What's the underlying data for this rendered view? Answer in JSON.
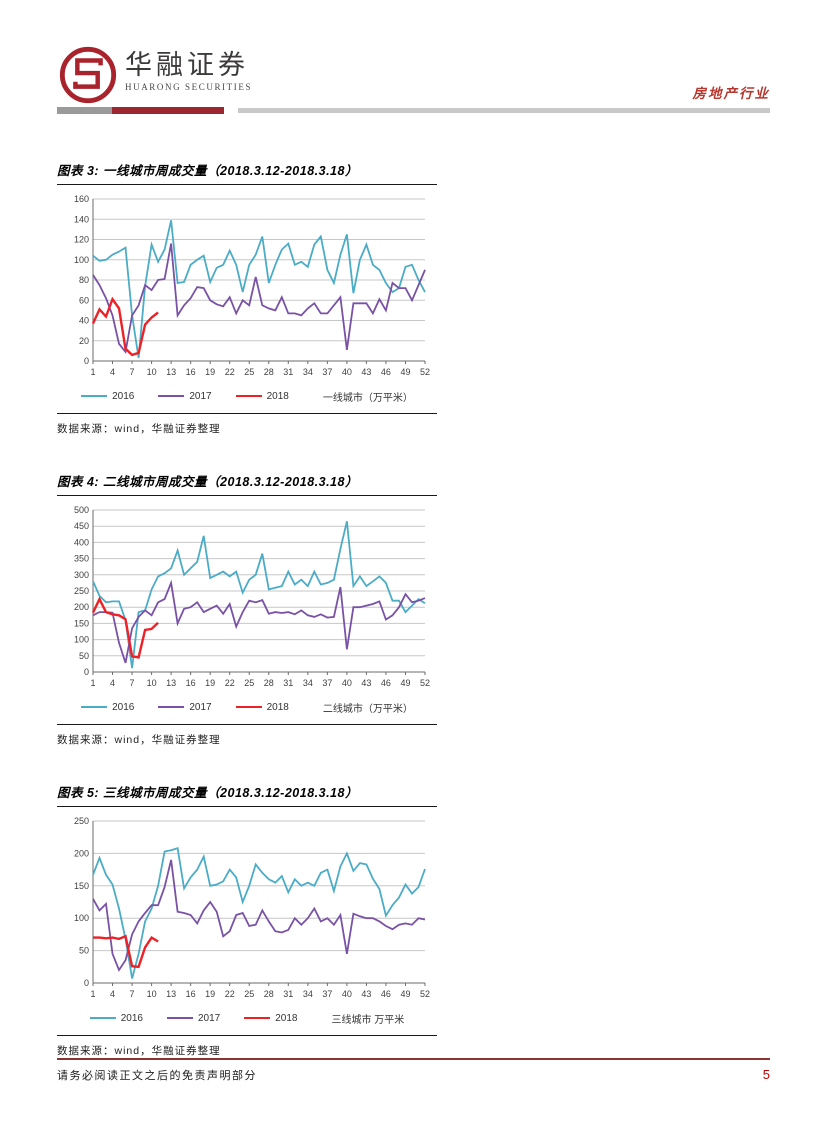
{
  "header": {
    "brand_cn": "华融证券",
    "brand_en": "HUARONG SECURITIES",
    "industry_label": "房地产行业"
  },
  "source_label": "数据来源：wind，华融证券整理",
  "footer": {
    "disclaimer": "请务必阅读正文之后的免责声明部分",
    "page_number": "5"
  },
  "colors": {
    "series_2016": "#4BACC6",
    "series_2017": "#7952A5",
    "series_2018": "#EC2227",
    "accent_red": "#9c2730",
    "footer_line": "#8c3434"
  },
  "chart_data": [
    {
      "type": "line",
      "title": "图表 3: 一线城市周成交量（2018.3.12-2018.3.18）",
      "unit_label": "一线城市（万平米）",
      "xlabel": "",
      "ylabel": "",
      "x_range": [
        1,
        52
      ],
      "x_ticks": [
        1,
        4,
        7,
        10,
        13,
        16,
        19,
        22,
        25,
        28,
        31,
        34,
        37,
        40,
        43,
        46,
        49,
        52
      ],
      "ylim": [
        0,
        160
      ],
      "y_step": 20,
      "grid": true,
      "legend_position": "bottom",
      "series": [
        {
          "name": "2016",
          "color": "#4BACC6",
          "values": [
            104,
            99,
            100,
            105,
            108,
            112,
            45,
            3,
            74,
            115,
            98,
            110,
            139,
            77,
            78,
            95,
            100,
            104,
            78,
            92,
            95,
            109,
            95,
            68,
            95,
            105,
            123,
            77,
            95,
            110,
            116,
            95,
            98,
            93,
            115,
            123,
            90,
            77,
            105,
            125,
            67,
            100,
            115,
            95,
            90,
            77,
            68,
            72,
            93,
            95,
            80,
            68
          ]
        },
        {
          "name": "2017",
          "color": "#7952A5",
          "values": [
            85,
            75,
            62,
            45,
            17,
            9,
            45,
            55,
            75,
            70,
            80,
            81,
            116,
            45,
            55,
            62,
            73,
            72,
            60,
            56,
            54,
            63,
            47,
            60,
            55,
            83,
            55,
            52,
            50,
            63,
            47,
            47,
            45,
            52,
            57,
            47,
            47,
            55,
            63,
            11,
            57,
            57,
            57,
            47,
            61,
            50,
            77,
            72,
            72,
            60,
            75,
            90
          ]
        },
        {
          "name": "2018",
          "color": "#EC2227",
          "values": [
            37,
            51,
            44,
            61,
            52,
            12,
            6,
            8,
            36,
            43,
            48
          ]
        }
      ]
    },
    {
      "type": "line",
      "title": "图表 4: 二线城市周成交量（2018.3.12-2018.3.18）",
      "unit_label": "二线城市（万平米）",
      "xlabel": "",
      "ylabel": "",
      "x_range": [
        1,
        52
      ],
      "x_ticks": [
        1,
        4,
        7,
        10,
        13,
        16,
        19,
        22,
        25,
        28,
        31,
        34,
        37,
        40,
        43,
        46,
        49,
        52
      ],
      "ylim": [
        0,
        500
      ],
      "y_step": 50,
      "grid": true,
      "legend_position": "bottom",
      "series": [
        {
          "name": "2016",
          "color": "#4BACC6",
          "values": [
            280,
            235,
            215,
            218,
            218,
            160,
            12,
            185,
            190,
            255,
            295,
            305,
            320,
            375,
            300,
            320,
            340,
            420,
            290,
            300,
            310,
            295,
            310,
            245,
            285,
            300,
            365,
            255,
            260,
            265,
            310,
            270,
            285,
            265,
            310,
            270,
            275,
            285,
            380,
            465,
            265,
            295,
            265,
            280,
            295,
            275,
            220,
            220,
            185,
            205,
            225,
            212
          ]
        },
        {
          "name": "2017",
          "color": "#7952A5",
          "values": [
            175,
            185,
            185,
            183,
            90,
            28,
            135,
            170,
            190,
            175,
            215,
            225,
            275,
            150,
            195,
            200,
            215,
            185,
            195,
            205,
            180,
            210,
            140,
            185,
            220,
            215,
            222,
            180,
            185,
            182,
            185,
            178,
            190,
            175,
            170,
            178,
            168,
            170,
            262,
            70,
            200,
            200,
            205,
            210,
            218,
            162,
            175,
            200,
            240,
            215,
            220,
            228
          ]
        },
        {
          "name": "2018",
          "color": "#EC2227",
          "values": [
            183,
            225,
            185,
            178,
            175,
            163,
            48,
            45,
            130,
            133,
            152
          ]
        }
      ]
    },
    {
      "type": "line",
      "title": "图表 5: 三线城市周成交量（2018.3.12-2018.3.18）",
      "unit_label": "三线城市 万平米",
      "xlabel": "",
      "ylabel": "",
      "x_range": [
        1,
        52
      ],
      "x_ticks": [
        1,
        4,
        7,
        10,
        13,
        16,
        19,
        22,
        25,
        28,
        31,
        34,
        37,
        40,
        43,
        46,
        49,
        52
      ],
      "ylim": [
        0,
        250
      ],
      "y_step": 50,
      "grid": true,
      "legend_position": "bottom",
      "series": [
        {
          "name": "2016",
          "color": "#4BACC6",
          "values": [
            167,
            193,
            167,
            152,
            115,
            68,
            7,
            45,
            95,
            115,
            150,
            203,
            205,
            208,
            146,
            163,
            175,
            195,
            150,
            152,
            157,
            175,
            163,
            125,
            150,
            183,
            170,
            160,
            155,
            165,
            140,
            160,
            150,
            155,
            150,
            170,
            175,
            142,
            180,
            200,
            173,
            185,
            183,
            161,
            145,
            104,
            120,
            132,
            152,
            138,
            148,
            176
          ]
        },
        {
          "name": "2017",
          "color": "#7952A5",
          "values": [
            130,
            112,
            122,
            45,
            20,
            35,
            75,
            95,
            108,
            120,
            120,
            148,
            190,
            110,
            108,
            105,
            92,
            112,
            125,
            110,
            72,
            80,
            105,
            108,
            88,
            90,
            112,
            95,
            80,
            78,
            82,
            100,
            90,
            100,
            115,
            95,
            100,
            90,
            105,
            45,
            107,
            103,
            100,
            100,
            95,
            88,
            83,
            90,
            92,
            90,
            100,
            98
          ]
        },
        {
          "name": "2018",
          "color": "#EC2227",
          "values": [
            70,
            70,
            69,
            70,
            68,
            72,
            26,
            25,
            55,
            70,
            64
          ]
        }
      ]
    }
  ]
}
